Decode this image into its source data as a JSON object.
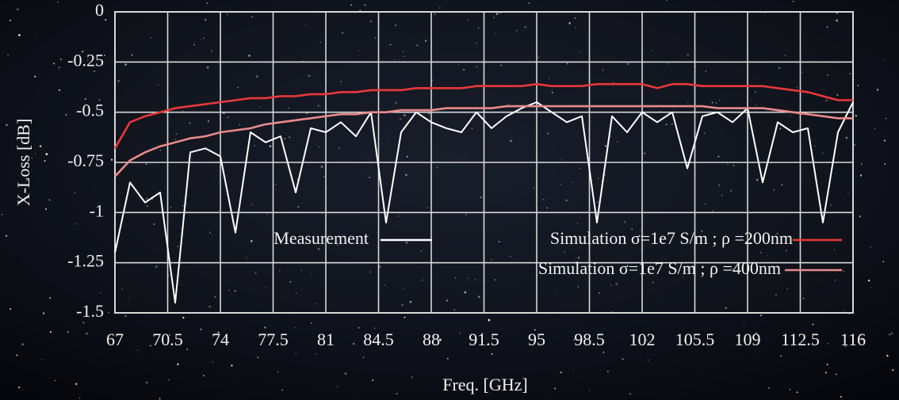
{
  "chart_data": {
    "type": "line",
    "x_label": "Freq. [GHz]",
    "y_label": "X-Loss [dB]",
    "x": [
      67,
      68,
      69,
      70,
      71,
      72,
      73,
      74,
      75,
      76,
      77,
      78,
      79,
      80,
      81,
      82,
      83,
      84,
      85,
      86,
      87,
      88,
      89,
      90,
      91,
      92,
      93,
      94,
      95,
      96,
      97,
      98,
      99,
      100,
      101,
      102,
      103,
      104,
      105,
      106,
      107,
      108,
      109,
      110,
      111,
      112,
      113,
      114,
      115,
      116
    ],
    "series": [
      {
        "name": "Measurement",
        "color": "#ffffff",
        "values": [
          -1.2,
          -0.85,
          -0.95,
          -0.9,
          -1.45,
          -0.7,
          -0.68,
          -0.72,
          -1.1,
          -0.6,
          -0.65,
          -0.62,
          -0.9,
          -0.58,
          -0.6,
          -0.55,
          -0.62,
          -0.5,
          -1.05,
          -0.6,
          -0.5,
          -0.55,
          -0.58,
          -0.6,
          -0.5,
          -0.58,
          -0.52,
          -0.48,
          -0.45,
          -0.5,
          -0.55,
          -0.52,
          -1.05,
          -0.52,
          -0.6,
          -0.5,
          -0.55,
          -0.5,
          -0.78,
          -0.52,
          -0.5,
          -0.55,
          -0.48,
          -0.85,
          -0.55,
          -0.6,
          -0.58,
          -1.05,
          -0.6,
          -0.45
        ]
      },
      {
        "name": "Simulation σ=1e7 S/m ; ρ =200nm",
        "color": "#e8383a",
        "values": [
          -0.68,
          -0.55,
          -0.52,
          -0.5,
          -0.48,
          -0.47,
          -0.46,
          -0.45,
          -0.44,
          -0.43,
          -0.43,
          -0.42,
          -0.42,
          -0.41,
          -0.41,
          -0.4,
          -0.4,
          -0.39,
          -0.39,
          -0.39,
          -0.38,
          -0.38,
          -0.38,
          -0.38,
          -0.37,
          -0.37,
          -0.37,
          -0.37,
          -0.36,
          -0.37,
          -0.37,
          -0.37,
          -0.36,
          -0.36,
          -0.36,
          -0.36,
          -0.38,
          -0.36,
          -0.36,
          -0.37,
          -0.37,
          -0.37,
          -0.37,
          -0.37,
          -0.38,
          -0.39,
          -0.4,
          -0.42,
          -0.44,
          -0.44
        ]
      },
      {
        "name": "Simulation σ=1e7 S/m ; ρ =400nm",
        "color": "#e88a8a",
        "values": [
          -0.82,
          -0.74,
          -0.7,
          -0.67,
          -0.65,
          -0.63,
          -0.62,
          -0.6,
          -0.59,
          -0.58,
          -0.56,
          -0.55,
          -0.54,
          -0.53,
          -0.52,
          -0.51,
          -0.51,
          -0.5,
          -0.5,
          -0.49,
          -0.49,
          -0.49,
          -0.48,
          -0.48,
          -0.48,
          -0.48,
          -0.47,
          -0.47,
          -0.47,
          -0.47,
          -0.47,
          -0.47,
          -0.47,
          -0.47,
          -0.47,
          -0.47,
          -0.47,
          -0.47,
          -0.47,
          -0.47,
          -0.48,
          -0.48,
          -0.48,
          -0.48,
          -0.49,
          -0.5,
          -0.51,
          -0.52,
          -0.53,
          -0.53
        ]
      }
    ],
    "xlim": [
      67,
      116
    ],
    "ylim": [
      -1.5,
      0
    ],
    "xticks": [
      67,
      70.5,
      74,
      77.5,
      81,
      84.5,
      88,
      91.5,
      95,
      98.5,
      102,
      105.5,
      109,
      112.5,
      116
    ],
    "yticks": [
      0,
      -0.25,
      -0.5,
      -0.75,
      -1,
      -1.25,
      -1.5
    ],
    "grid": true
  }
}
